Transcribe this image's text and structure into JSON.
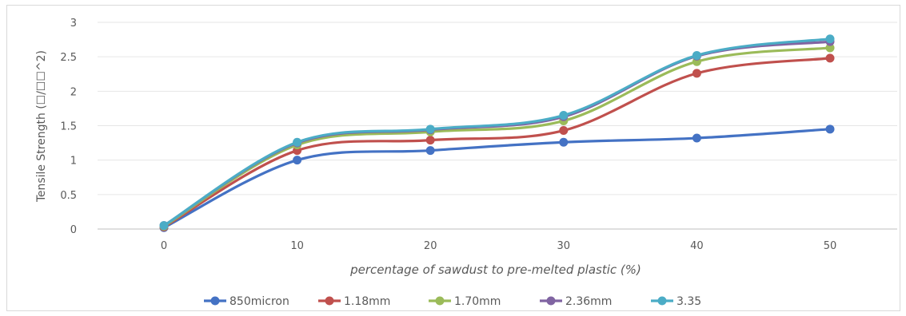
{
  "chart_data": {
    "type": "line",
    "title": "",
    "xlabel": "percentage of sawdust to pre-melted plastic (%)",
    "ylabel": "Tensile Strength (☐/☐☐^2)",
    "categories": [
      0,
      10,
      20,
      30,
      40,
      50
    ],
    "x_tick_labels": [
      "0",
      "10",
      "20",
      "30",
      "40",
      "50"
    ],
    "y_tick_labels": [
      "0",
      "0.5",
      "1",
      "1.5",
      "2",
      "2.5",
      "3"
    ],
    "ylim": [
      0,
      3
    ],
    "grid": "horizontal",
    "legend_position": "bottom",
    "series": [
      {
        "name": "850micron",
        "color": "#4472c4",
        "values": [
          0.02,
          1.0,
          1.14,
          1.26,
          1.32,
          1.45
        ]
      },
      {
        "name": "1.18mm",
        "color": "#c0504d",
        "values": [
          0.03,
          1.14,
          1.29,
          1.43,
          2.26,
          2.48
        ]
      },
      {
        "name": "1.70mm",
        "color": "#9bbb59",
        "values": [
          0.04,
          1.22,
          1.41,
          1.57,
          2.43,
          2.63
        ]
      },
      {
        "name": "2.36mm",
        "color": "#8064a2",
        "values": [
          0.05,
          1.25,
          1.44,
          1.63,
          2.51,
          2.72
        ]
      },
      {
        "name": "3.35",
        "color": "#4bacc6",
        "values": [
          0.05,
          1.26,
          1.45,
          1.65,
          2.52,
          2.76
        ]
      }
    ]
  }
}
